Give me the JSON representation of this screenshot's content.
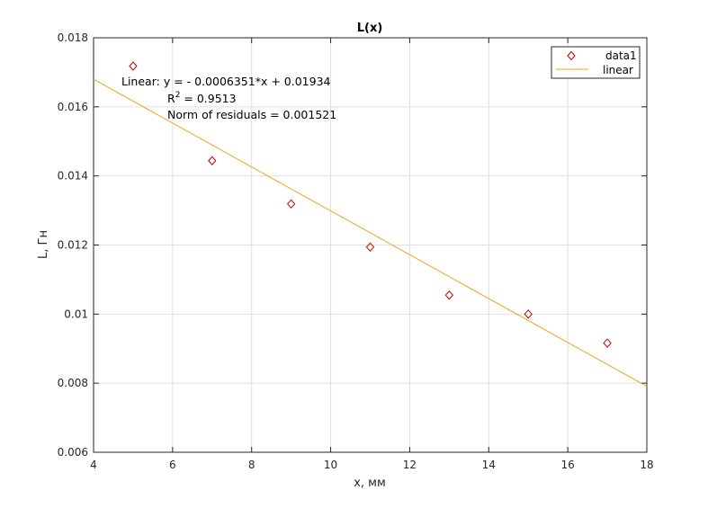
{
  "chart_data": {
    "type": "scatter",
    "title": "L(x)",
    "xlabel": "x, мм",
    "ylabel": "L, Гн",
    "xlim": [
      4,
      18
    ],
    "ylim": [
      0.006,
      0.018
    ],
    "xticks": [
      4,
      6,
      8,
      10,
      12,
      14,
      16,
      18
    ],
    "xtick_labels": [
      "4",
      "6",
      "8",
      "10",
      "12",
      "14",
      "16",
      "18"
    ],
    "yticks": [
      0.006,
      0.008,
      0.01,
      0.012,
      0.014,
      0.016,
      0.018
    ],
    "ytick_labels": [
      "0.006",
      "0.008",
      "0.01",
      "0.012",
      "0.014",
      "0.016",
      "0.018"
    ],
    "grid": true,
    "legend_position": "top-right",
    "series": [
      {
        "name": "data1",
        "kind": "scatter",
        "marker": "diamond",
        "color": "#c00000",
        "x": [
          5,
          7,
          9,
          11,
          13,
          15,
          17
        ],
        "y": [
          0.01718,
          0.01444,
          0.01319,
          0.01194,
          0.01055,
          0.01,
          0.00916
        ]
      },
      {
        "name": "linear",
        "kind": "line",
        "color": "#e6a817",
        "slope": -0.0006351,
        "intercept": 0.01934,
        "x": [
          4,
          18
        ],
        "y": [
          0.0168,
          0.007908
        ]
      }
    ],
    "annotations": {
      "line1": "Linear:  y = - 0.0006351*x + 0.01934",
      "r2_prefix": "R",
      "r2_sup": "2",
      "r2_suffix": " = 0.9513",
      "line3": "Norm of residuals = 0.001521"
    }
  }
}
